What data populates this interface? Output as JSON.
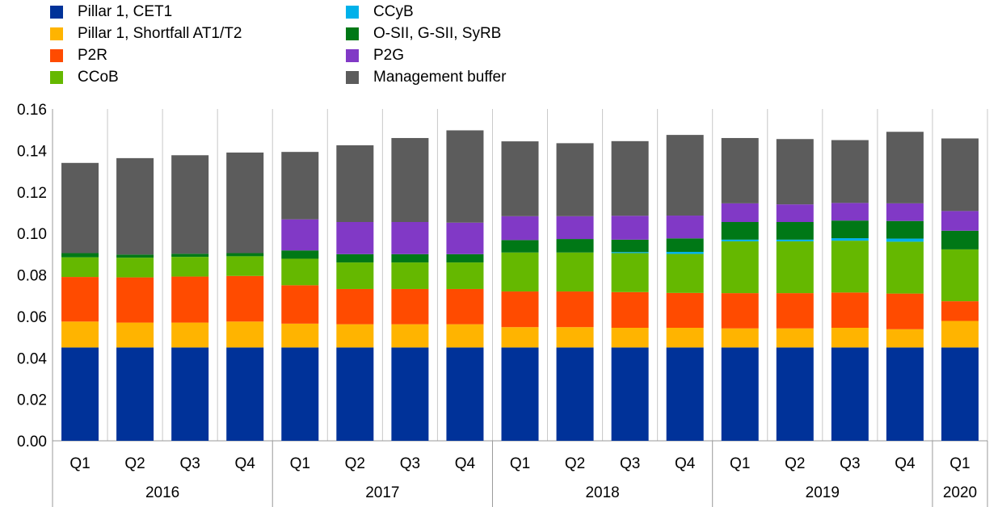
{
  "chart_data": {
    "type": "bar",
    "stacked": true,
    "title": "",
    "xlabel": "",
    "ylabel": "",
    "ylim": [
      0,
      0.16
    ],
    "yticks": [
      "0.00",
      "0.02",
      "0.04",
      "0.06",
      "0.08",
      "0.10",
      "0.12",
      "0.14",
      "0.16"
    ],
    "grid": "vertical separators between categories",
    "legend_position": "top-left",
    "categories": [
      "Q1",
      "Q2",
      "Q3",
      "Q4",
      "Q1",
      "Q2",
      "Q3",
      "Q4",
      "Q1",
      "Q2",
      "Q3",
      "Q4",
      "Q1",
      "Q2",
      "Q3",
      "Q4",
      "Q1"
    ],
    "year_groups": [
      {
        "label": "2016",
        "count": 4
      },
      {
        "label": "2017",
        "count": 4
      },
      {
        "label": "2018",
        "count": 4
      },
      {
        "label": "2019",
        "count": 4
      },
      {
        "label": "2020",
        "count": 1
      }
    ],
    "series": [
      {
        "name": "Pillar 1, CET1",
        "color": "#003299",
        "values": [
          0.045,
          0.045,
          0.045,
          0.045,
          0.045,
          0.045,
          0.045,
          0.045,
          0.045,
          0.045,
          0.045,
          0.045,
          0.045,
          0.045,
          0.045,
          0.045,
          0.045
        ]
      },
      {
        "name": "Pillar 1, Shortfall AT1/T2",
        "color": "#ffb400",
        "values": [
          0.0125,
          0.012,
          0.012,
          0.0125,
          0.0115,
          0.0112,
          0.0112,
          0.0112,
          0.0098,
          0.0098,
          0.0095,
          0.0095,
          0.0092,
          0.0092,
          0.0095,
          0.0088,
          0.0128
        ]
      },
      {
        "name": "P2R",
        "color": "#ff4b00",
        "values": [
          0.0215,
          0.0218,
          0.0222,
          0.022,
          0.0185,
          0.017,
          0.017,
          0.017,
          0.0172,
          0.0172,
          0.0172,
          0.0168,
          0.017,
          0.017,
          0.017,
          0.0172,
          0.0095
        ]
      },
      {
        "name": "CCoB",
        "color": "#65b800",
        "values": [
          0.0095,
          0.0095,
          0.0095,
          0.0095,
          0.0128,
          0.0128,
          0.0128,
          0.0128,
          0.0188,
          0.0188,
          0.0188,
          0.0188,
          0.025,
          0.025,
          0.025,
          0.025,
          0.025
        ]
      },
      {
        "name": "CCyB",
        "color": "#00b1ea",
        "values": [
          0,
          0,
          0,
          0,
          0,
          0,
          0,
          0,
          0,
          0,
          0.0005,
          0.001,
          0.0008,
          0.0008,
          0.0012,
          0.0015,
          0
        ]
      },
      {
        "name": "O-SII, G-SII, SyRB",
        "color": "#007816",
        "values": [
          0.002,
          0.0015,
          0.0015,
          0.0015,
          0.004,
          0.004,
          0.004,
          0.004,
          0.006,
          0.0065,
          0.006,
          0.0065,
          0.0085,
          0.0085,
          0.0085,
          0.0085,
          0.009
        ]
      },
      {
        "name": "P2G",
        "color": "#8139c6",
        "values": [
          0,
          0,
          0,
          0,
          0.015,
          0.0155,
          0.0155,
          0.0152,
          0.0115,
          0.011,
          0.0115,
          0.011,
          0.009,
          0.0085,
          0.0085,
          0.0085,
          0.0095
        ]
      },
      {
        "name": "Management buffer",
        "color": "#5c5c5c",
        "values": [
          0.0435,
          0.0465,
          0.0475,
          0.0485,
          0.0325,
          0.037,
          0.0405,
          0.0445,
          0.0361,
          0.0352,
          0.036,
          0.0389,
          0.0315,
          0.0315,
          0.0303,
          0.0345,
          0.035
        ]
      }
    ]
  },
  "legend": {
    "items": [
      {
        "label": "Pillar 1, CET1",
        "color": "#003299"
      },
      {
        "label": "Pillar 1, Shortfall AT1/T2",
        "color": "#ffb400"
      },
      {
        "label": "P2R",
        "color": "#ff4b00"
      },
      {
        "label": "CCoB",
        "color": "#65b800"
      },
      {
        "label": "CCyB",
        "color": "#00b1ea"
      },
      {
        "label": "O-SII, G-SII, SyRB",
        "color": "#007816"
      },
      {
        "label": "P2G",
        "color": "#8139c6"
      },
      {
        "label": "Management buffer",
        "color": "#5c5c5c"
      }
    ]
  }
}
